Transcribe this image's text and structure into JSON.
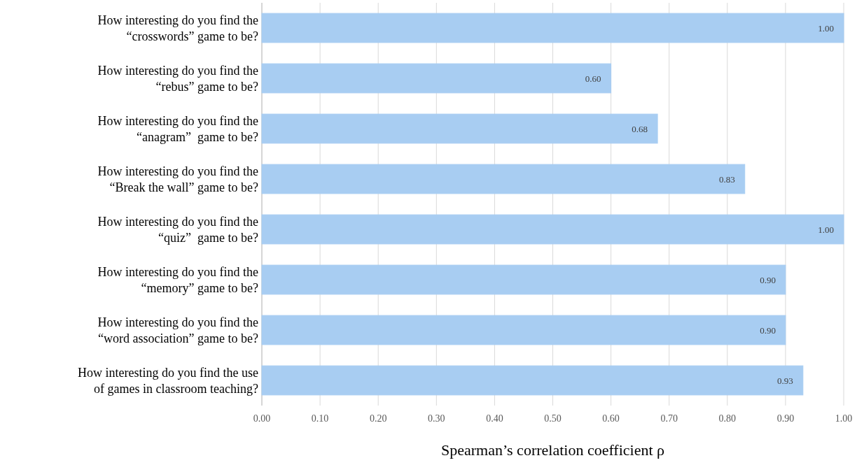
{
  "chart_data": {
    "type": "bar",
    "orientation": "horizontal",
    "xlabel": "Spearman’s correlation coefficient ρ",
    "categories": [
      "How interesting do you find the\n“crosswords” game to be?",
      "How interesting do you find the\n“rebus” game to be?",
      "How interesting do you find the\n“anagram”  game to be?",
      "How interesting do you find the\n“Break the wall” game to be?",
      "How interesting do you find the\n“quiz”  game to be?",
      "How interesting do you find the\n“memory” game to be?",
      "How interesting do you find the\n“word association” game to be?",
      "How interesting do you find the use\nof games in classroom teaching?"
    ],
    "values": [
      1.0,
      0.6,
      0.68,
      0.83,
      1.0,
      0.9,
      0.9,
      0.93
    ],
    "value_labels": [
      "1.00",
      "0.60",
      "0.68",
      "0.83",
      "1.00",
      "0.90",
      "0.90",
      "0.93"
    ],
    "color": "#a8cdf2",
    "xlim": [
      0,
      1
    ],
    "xticks": [
      {
        "value": 0,
        "label": "0.00"
      },
      {
        "value": 0.1,
        "label": "0.10"
      },
      {
        "value": 0.2,
        "label": "0.20"
      },
      {
        "value": 0.3,
        "label": "0.30"
      },
      {
        "value": 0.4,
        "label": "0.40"
      },
      {
        "value": 0.5,
        "label": "0.50"
      },
      {
        "value": 0.6,
        "label": "0.60"
      },
      {
        "value": 0.7,
        "label": "0.70"
      },
      {
        "value": 0.8,
        "label": "0.80"
      },
      {
        "value": 0.9,
        "label": "0.90"
      },
      {
        "value": 1,
        "label": "1.00"
      }
    ],
    "grid": "x"
  }
}
